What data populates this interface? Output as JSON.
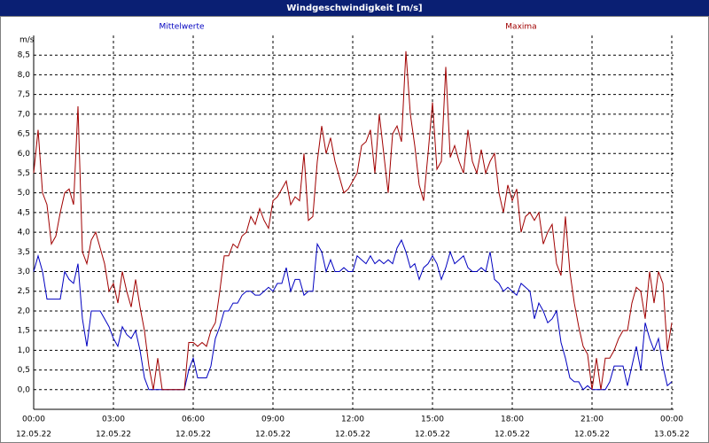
{
  "chart_data": {
    "type": "line",
    "title": "Windgeschwindigkeit [m/s]",
    "y_label": "m/s",
    "x": [
      0,
      10,
      20,
      30,
      40,
      50,
      60,
      70,
      80,
      90,
      100,
      110,
      120,
      130,
      140,
      150,
      160,
      170,
      180,
      190,
      200,
      210,
      220,
      230,
      240,
      250,
      260,
      270,
      280,
      290,
      300,
      310,
      320,
      330,
      340,
      350,
      360,
      370,
      380,
      390,
      400,
      410,
      420,
      430,
      440,
      450,
      460,
      470,
      480,
      490,
      500,
      510,
      520,
      530,
      540,
      550,
      560,
      570,
      580,
      590,
      600,
      610,
      620,
      630,
      640,
      650,
      660,
      670,
      680,
      690,
      700,
      710,
      720,
      730,
      740,
      750,
      760,
      770,
      780,
      790,
      800,
      810,
      820,
      830,
      840,
      850,
      860,
      870,
      880,
      890,
      900,
      910,
      920,
      930,
      940,
      950,
      960,
      970,
      980,
      990,
      1000,
      1010,
      1020,
      1030,
      1040,
      1050,
      1060,
      1070,
      1080,
      1090,
      1100,
      1110,
      1120,
      1130,
      1140,
      1150,
      1160,
      1170,
      1180,
      1190,
      1200,
      1210,
      1220,
      1230,
      1240,
      1250,
      1260,
      1270,
      1280,
      1290,
      1300,
      1310,
      1320,
      1330,
      1340,
      1350,
      1360,
      1370,
      1380,
      1390,
      1400,
      1410,
      1420,
      1430,
      1440
    ],
    "series": [
      {
        "name": "Mittelwerte",
        "color": "#0000c0",
        "values": [
          3.0,
          3.4,
          3.0,
          2.3,
          2.3,
          2.3,
          2.3,
          3.0,
          2.8,
          2.7,
          3.2,
          1.8,
          1.1,
          2.0,
          2.0,
          2.0,
          1.8,
          1.6,
          1.3,
          1.1,
          1.6,
          1.4,
          1.3,
          1.5,
          1.0,
          0.3,
          0.0,
          0.0,
          0.0,
          0.0,
          0.0,
          0.0,
          0.0,
          0.0,
          0.0,
          0.5,
          0.8,
          0.3,
          0.3,
          0.3,
          0.6,
          1.3,
          1.6,
          2.0,
          2.0,
          2.2,
          2.2,
          2.4,
          2.5,
          2.5,
          2.4,
          2.4,
          2.5,
          2.6,
          2.5,
          2.7,
          2.7,
          3.1,
          2.5,
          2.8,
          2.8,
          2.4,
          2.5,
          2.5,
          3.7,
          3.5,
          3.0,
          3.3,
          3.0,
          3.0,
          3.1,
          3.0,
          3.0,
          3.4,
          3.3,
          3.2,
          3.4,
          3.2,
          3.3,
          3.2,
          3.3,
          3.2,
          3.6,
          3.8,
          3.5,
          3.1,
          3.2,
          2.8,
          3.1,
          3.2,
          3.4,
          3.2,
          2.8,
          3.1,
          3.5,
          3.2,
          3.3,
          3.4,
          3.1,
          3.0,
          3.0,
          3.1,
          3.0,
          3.5,
          2.8,
          2.7,
          2.5,
          2.6,
          2.5,
          2.4,
          2.7,
          2.6,
          2.5,
          1.8,
          2.2,
          2.0,
          1.7,
          1.8,
          2.0,
          1.2,
          0.8,
          0.3,
          0.2,
          0.2,
          0.0,
          0.1,
          0.0,
          0.0,
          0.0,
          0.0,
          0.2,
          0.6,
          0.6,
          0.6,
          0.1,
          0.6,
          1.1,
          0.5,
          1.7,
          1.3,
          1.0,
          1.3,
          0.6,
          0.1,
          0.2
        ]
      },
      {
        "name": "Maxima",
        "color": "#a00000",
        "values": [
          5.5,
          6.6,
          5.0,
          4.7,
          3.7,
          3.9,
          4.5,
          5.0,
          5.1,
          4.7,
          7.2,
          3.5,
          3.2,
          3.8,
          4.0,
          3.6,
          3.2,
          2.5,
          2.7,
          2.2,
          3.0,
          2.5,
          2.1,
          2.8,
          2.1,
          1.5,
          0.6,
          0.0,
          0.8,
          0.0,
          0.0,
          0.0,
          0.0,
          0.0,
          0.0,
          1.2,
          1.2,
          1.1,
          1.2,
          1.1,
          1.5,
          1.7,
          2.5,
          3.4,
          3.4,
          3.7,
          3.6,
          3.9,
          4.0,
          4.4,
          4.2,
          4.6,
          4.3,
          4.1,
          4.8,
          4.9,
          5.1,
          5.3,
          4.7,
          4.9,
          4.8,
          6.0,
          4.3,
          4.4,
          5.8,
          6.7,
          6.0,
          6.4,
          5.8,
          5.4,
          5.0,
          5.1,
          5.3,
          5.5,
          6.2,
          6.3,
          6.6,
          5.5,
          7.0,
          6.0,
          5.0,
          6.5,
          6.7,
          6.3,
          8.6,
          7.0,
          6.2,
          5.2,
          4.8,
          6.0,
          7.3,
          5.6,
          5.8,
          8.2,
          5.9,
          6.2,
          5.8,
          5.5,
          6.6,
          5.8,
          5.5,
          6.1,
          5.5,
          5.8,
          6.0,
          5.0,
          4.5,
          5.2,
          4.8,
          5.1,
          4.0,
          4.4,
          4.5,
          4.3,
          4.5,
          3.7,
          4.0,
          4.2,
          3.2,
          2.9,
          4.4,
          3.0,
          2.2,
          1.6,
          1.1,
          0.9,
          0.0,
          0.8,
          0.0,
          0.8,
          0.8,
          1.0,
          1.3,
          1.5,
          1.5,
          2.2,
          2.6,
          2.5,
          1.8,
          3.0,
          2.2,
          3.0,
          2.7,
          1.0,
          1.7
        ]
      }
    ],
    "xlim": [
      0,
      1440
    ],
    "xticks": [
      {
        "value": 0,
        "label": "00:00",
        "date": "12.05.22"
      },
      {
        "value": 180,
        "label": "03:00",
        "date": "12.05.22"
      },
      {
        "value": 360,
        "label": "06:00",
        "date": "12.05.22"
      },
      {
        "value": 540,
        "label": "09:00",
        "date": "12.05.22"
      },
      {
        "value": 720,
        "label": "12:00",
        "date": "12.05.22"
      },
      {
        "value": 900,
        "label": "15:00",
        "date": "12.05.22"
      },
      {
        "value": 1080,
        "label": "18:00",
        "date": "12.05.22"
      },
      {
        "value": 1260,
        "label": "21:00",
        "date": "12.05.22"
      },
      {
        "value": 1440,
        "label": "00:00",
        "date": "13.05.22"
      }
    ],
    "ylim": [
      -0.5,
      9
    ],
    "yticks": [
      {
        "value": 0,
        "label": "0,0"
      },
      {
        "value": 0.5,
        "label": "0,5"
      },
      {
        "value": 1,
        "label": "1,0"
      },
      {
        "value": 1.5,
        "label": "1,5"
      },
      {
        "value": 2,
        "label": "2,0"
      },
      {
        "value": 2.5,
        "label": "2,5"
      },
      {
        "value": 3,
        "label": "3,0"
      },
      {
        "value": 3.5,
        "label": "3,5"
      },
      {
        "value": 4,
        "label": "4,0"
      },
      {
        "value": 4.5,
        "label": "4,5"
      },
      {
        "value": 5,
        "label": "5,0"
      },
      {
        "value": 5.5,
        "label": "5,5"
      },
      {
        "value": 6,
        "label": "6,0"
      },
      {
        "value": 6.5,
        "label": "6,5"
      },
      {
        "value": 7,
        "label": "7,0"
      },
      {
        "value": 7.5,
        "label": "7,5"
      },
      {
        "value": 8,
        "label": "8,0"
      },
      {
        "value": 8.5,
        "label": "8,5"
      }
    ],
    "grid": true
  }
}
